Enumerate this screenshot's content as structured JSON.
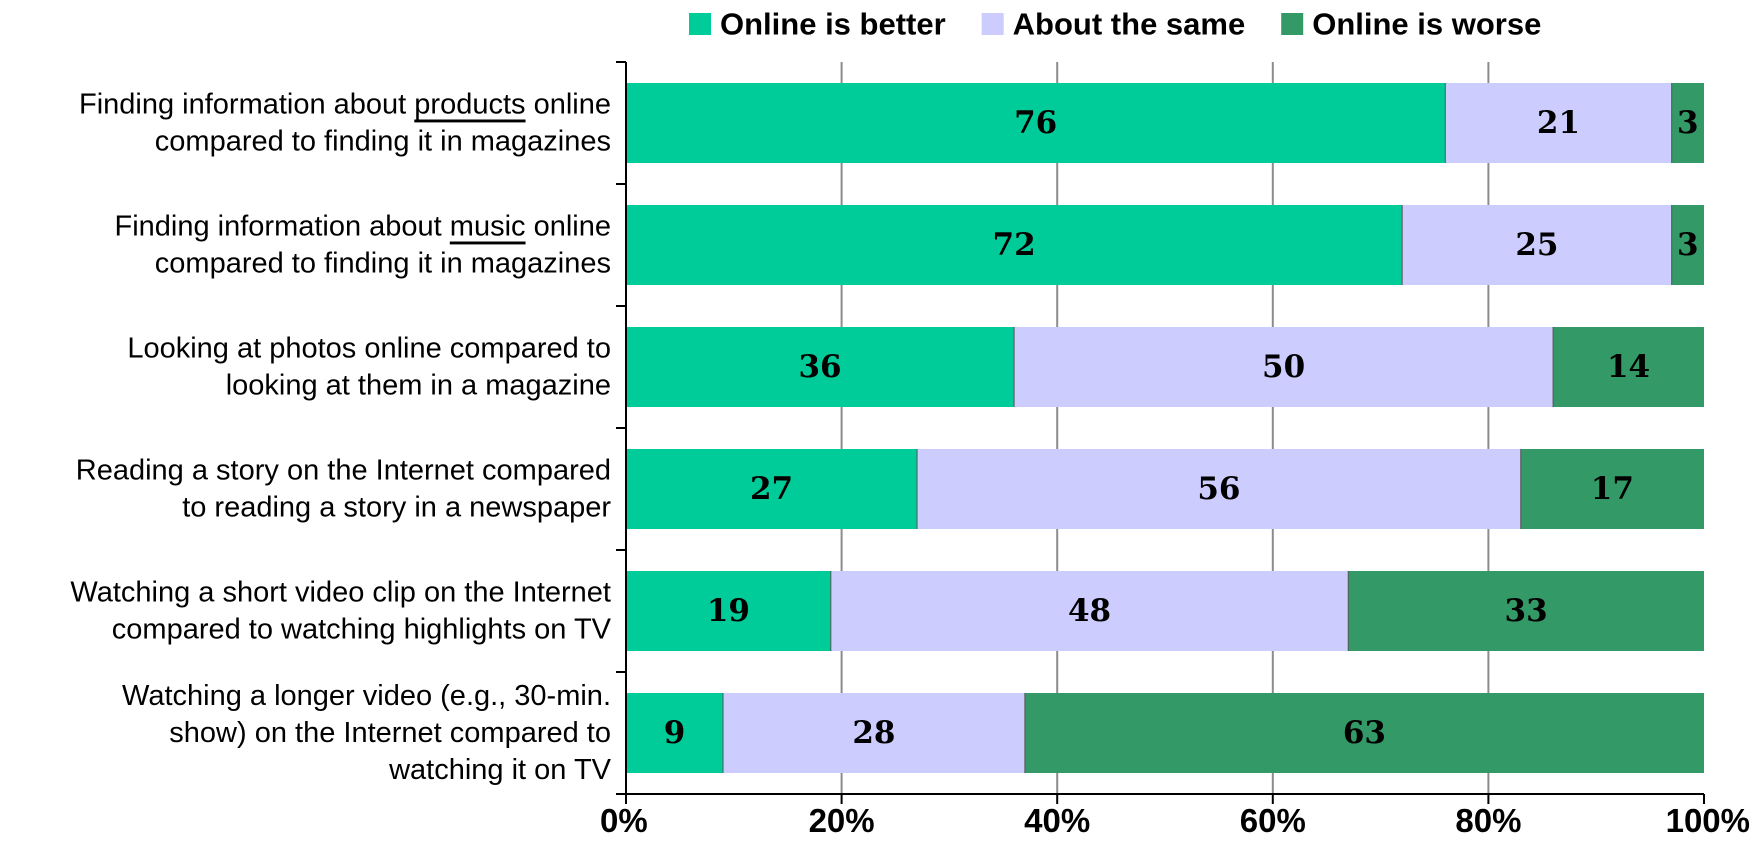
{
  "chart_data": {
    "type": "bar",
    "orientation": "horizontal",
    "stacked": true,
    "title": "",
    "xlabel": "",
    "ylabel": "",
    "xlim": [
      0,
      100
    ],
    "x_ticks": [
      "0%",
      "20%",
      "40%",
      "60%",
      "80%",
      "100%"
    ],
    "grid": true,
    "legend_position": "top-right",
    "categories": [
      [
        [
          {
            "t": "Finding information about "
          },
          {
            "t": "products",
            "u": true
          },
          {
            "t": " online"
          }
        ],
        [
          {
            "t": "compared to finding it in magazines"
          }
        ]
      ],
      [
        [
          {
            "t": "Finding information about "
          },
          {
            "t": "music",
            "u": true
          },
          {
            "t": " online"
          }
        ],
        [
          {
            "t": "compared to finding it in magazines"
          }
        ]
      ],
      [
        [
          {
            "t": "Looking at photos online compared to"
          }
        ],
        [
          {
            "t": "looking at them in a magazine"
          }
        ]
      ],
      [
        [
          {
            "t": "Reading a story on the Internet compared"
          }
        ],
        [
          {
            "t": "to reading a story in a newspaper"
          }
        ]
      ],
      [
        [
          {
            "t": "Watching a short video clip on the Internet"
          }
        ],
        [
          {
            "t": "compared to watching highlights on TV"
          }
        ]
      ],
      [
        [
          {
            "t": "Watching a longer video (e.g., 30-min."
          }
        ],
        [
          {
            "t": "show) on the Internet compared to"
          }
        ],
        [
          {
            "t": "watching it on TV"
          }
        ]
      ]
    ],
    "series": [
      {
        "name": "Online is better",
        "color": "#00CC99",
        "values": [
          76,
          72,
          36,
          27,
          19,
          9
        ]
      },
      {
        "name": "About the same",
        "color": "#CCCCFF",
        "values": [
          21,
          25,
          50,
          56,
          48,
          28
        ]
      },
      {
        "name": "Online is worse",
        "color": "#339966",
        "values": [
          3,
          3,
          14,
          17,
          33,
          63
        ]
      }
    ]
  }
}
